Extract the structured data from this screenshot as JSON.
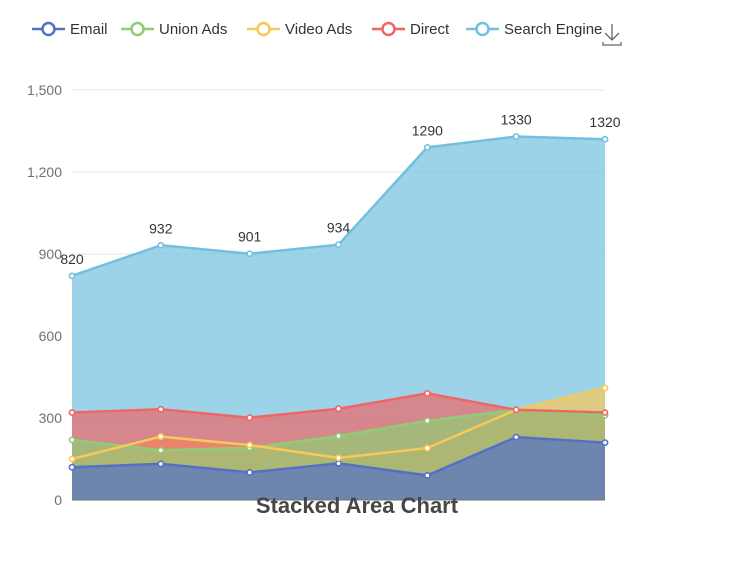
{
  "chart_data": {
    "type": "area",
    "stacked": false,
    "title": "Stacked Area Chart",
    "categories": [
      "",
      "",
      "",
      "",
      "",
      "",
      ""
    ],
    "ylim": [
      0,
      1500
    ],
    "yticks": [
      0,
      300,
      600,
      900,
      1200,
      1500
    ],
    "ytick_labels": [
      "0",
      "300",
      "600",
      "900",
      "1,200",
      "1,500"
    ],
    "grid": true,
    "legend_position": "top",
    "series": [
      {
        "name": "Email",
        "color": "#5470c6",
        "values": [
          120,
          132,
          101,
          134,
          90,
          230,
          210
        ]
      },
      {
        "name": "Union Ads",
        "color": "#91cc75",
        "values": [
          220,
          182,
          191,
          234,
          290,
          330,
          310
        ]
      },
      {
        "name": "Video Ads",
        "color": "#fac858",
        "values": [
          150,
          232,
          201,
          154,
          190,
          330,
          410
        ]
      },
      {
        "name": "Direct",
        "color": "#ee6666",
        "values": [
          320,
          332,
          301,
          334,
          390,
          330,
          320
        ]
      },
      {
        "name": "Search Engine",
        "color": "#73c0de",
        "values": [
          820,
          932,
          901,
          934,
          1290,
          1330,
          1320
        ],
        "labels": [
          "820",
          "932",
          "901",
          "934",
          "1290",
          "1330",
          "1320"
        ]
      }
    ]
  },
  "toolbox": {
    "icon": "download-icon"
  }
}
